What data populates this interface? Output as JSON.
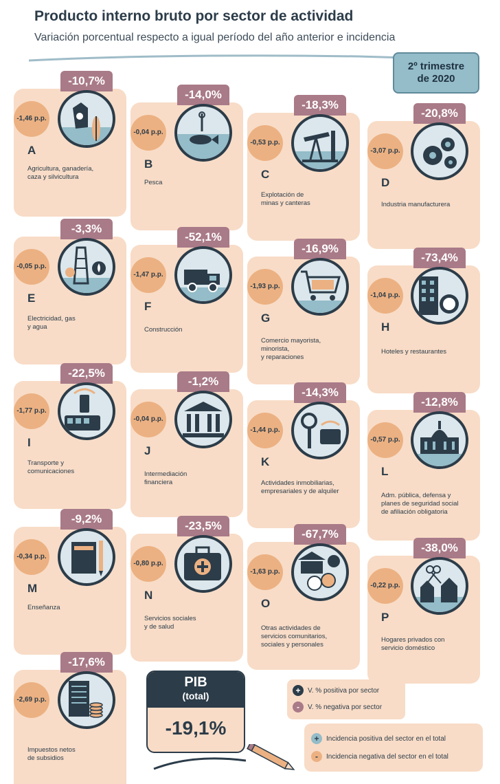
{
  "header": {
    "title": "Producto interno bruto por sector de actividad",
    "subtitle": "Variación porcentual respecto a igual período del año anterior e incidencia",
    "period": "2º trimestre\nde 2020"
  },
  "sectors": [
    {
      "letter": "A",
      "pct": "-10,7%",
      "pp": "-1,46 p.p.",
      "name": "Agricultura, ganadería,\ncaza y silvicultura",
      "icon": "cow-wheat-icon"
    },
    {
      "letter": "B",
      "pct": "-14,0%",
      "pp": "-0,04 p.p.",
      "name": "Pesca",
      "icon": "fish-hook-icon"
    },
    {
      "letter": "C",
      "pct": "-18,3%",
      "pp": "-0,53 p.p.",
      "name": "Explotación de\nminas y canteras",
      "icon": "oil-pump-icon"
    },
    {
      "letter": "D",
      "pct": "-20,8%",
      "pp": "-3,07 p.p.",
      "name": "Industria manufacturera",
      "icon": "gears-icon"
    },
    {
      "letter": "E",
      "pct": "-3,3%",
      "pp": "-0,05 p.p.",
      "name": "Electricidad, gas\ny agua",
      "icon": "power-tower-icon"
    },
    {
      "letter": "F",
      "pct": "-52,1%",
      "pp": "-1,47 p.p.",
      "name": "Construcción",
      "icon": "dump-truck-icon"
    },
    {
      "letter": "G",
      "pct": "-16,9%",
      "pp": "-1,93 p.p.",
      "name": "Comercio mayorista,\nminorista,\ny reparaciones",
      "icon": "shopping-cart-icon"
    },
    {
      "letter": "H",
      "pct": "-73,4%",
      "pp": "-1,04 p.p.",
      "name": "Hoteles y restaurantes",
      "icon": "hotel-plate-icon"
    },
    {
      "letter": "I",
      "pct": "-22,5%",
      "pp": "-1,77 p.p.",
      "name": "Transporte y\ncomunicaciones",
      "icon": "bus-phone-icon"
    },
    {
      "letter": "J",
      "pct": "-1,2%",
      "pp": "-0,04 p.p.",
      "name": "Intermediación\nfinanciera",
      "icon": "bank-icon"
    },
    {
      "letter": "K",
      "pct": "-14,3%",
      "pp": "-1,44 p.p.",
      "name": "Actividades inmobiliarias,\nempresariales y de alquiler",
      "icon": "key-megaphone-icon"
    },
    {
      "letter": "L",
      "pct": "-12,8%",
      "pp": "-0,57 p.p.",
      "name": "Adm. pública, defensa y\nplanes de seguridad social\nde afiliación obligatoria",
      "icon": "congress-icon"
    },
    {
      "letter": "M",
      "pct": "-9,2%",
      "pp": "-0,34 p.p.",
      "name": "Enseñanza",
      "icon": "notebook-pencil-icon"
    },
    {
      "letter": "N",
      "pct": "-23,5%",
      "pp": "-0,80 p.p.",
      "name": "Servicios sociales\ny de salud",
      "icon": "medical-kit-icon"
    },
    {
      "letter": "O",
      "pct": "-67,7%",
      "pp": "-1,63 p.p.",
      "name": "Otras actividades de\nservicios comunitarios,\nsociales y personales",
      "icon": "theater-masks-icon"
    },
    {
      "letter": "P",
      "pct": "-38,0%",
      "pp": "-0,22 p.p.",
      "name": "Hogares privados con\nservicio doméstico",
      "icon": "scissors-houses-icon"
    },
    {
      "letter": "",
      "pct": "-17,6%",
      "pp": "-2,69 p.p.",
      "name": "Impuestos netos\nde subsidios",
      "icon": "coins-document-icon"
    }
  ],
  "pib": {
    "title": "PIB",
    "subtitle": "(total)",
    "value": "-19,1%"
  },
  "legend": {
    "pos_var": "V. % positiva por sector",
    "neg_var": "V. % negativa por sector",
    "pos_inc": "Incidencia positiva del sector en el total",
    "neg_inc": "Incidencia negativa del sector en el total",
    "plus": "+",
    "minus": "-"
  },
  "colors": {
    "navy": "#2c3c49",
    "mauve": "#a97a88",
    "peach": "#ecb182",
    "tile": "#f8dcc7",
    "light_blue": "#94bcc9"
  }
}
